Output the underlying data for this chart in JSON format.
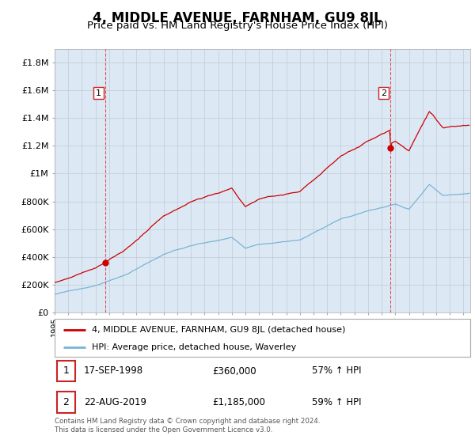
{
  "title": "4, MIDDLE AVENUE, FARNHAM, GU9 8JL",
  "subtitle": "Price paid vs. HM Land Registry's House Price Index (HPI)",
  "title_fontsize": 12,
  "subtitle_fontsize": 9.5,
  "ylim": [
    0,
    1900000
  ],
  "yticks": [
    0,
    200000,
    400000,
    600000,
    800000,
    1000000,
    1200000,
    1400000,
    1600000,
    1800000
  ],
  "ytick_labels": [
    "£0",
    "£200K",
    "£400K",
    "£600K",
    "£800K",
    "£1M",
    "£1.2M",
    "£1.4M",
    "£1.6M",
    "£1.8M"
  ],
  "sale1_date": 1998.72,
  "sale1_price": 360000,
  "sale2_date": 2019.64,
  "sale2_price": 1185000,
  "red_color": "#cc0000",
  "blue_color": "#7bb3d4",
  "plot_bg_color": "#dce9f5",
  "marker_color": "#cc0000",
  "vline_color": "#dd4444",
  "grid_color": "#c0c8d8",
  "legend_label_red": "4, MIDDLE AVENUE, FARNHAM, GU9 8JL (detached house)",
  "legend_label_blue": "HPI: Average price, detached house, Waverley",
  "annotation1": [
    "1",
    "17-SEP-1998",
    "£360,000",
    "57% ↑ HPI"
  ],
  "annotation2": [
    "2",
    "22-AUG-2019",
    "£1,185,000",
    "59% ↑ HPI"
  ],
  "footnote": "Contains HM Land Registry data © Crown copyright and database right 2024.\nThis data is licensed under the Open Government Licence v3.0.",
  "xmin": 1995.0,
  "xmax": 2025.5
}
